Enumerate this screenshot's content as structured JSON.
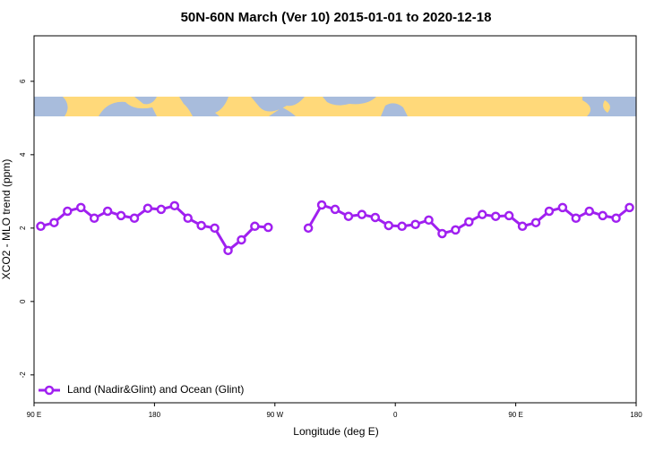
{
  "chart_data": {
    "type": "line",
    "title": "50N-60N March (Ver 10)   2015-01-01 to 2020-12-18",
    "x_label": "Longitude (deg E)",
    "y_label": "XCO2 - MLO trend (ppm)",
    "x": [
      95,
      105,
      115,
      125,
      135,
      145,
      155,
      165,
      175,
      185,
      195,
      205,
      215,
      225,
      235,
      245,
      255,
      265,
      275,
      285,
      295,
      305,
      315,
      325,
      335,
      345,
      355,
      365,
      375,
      385,
      395,
      405,
      415,
      425,
      435,
      445,
      455,
      465,
      475,
      485,
      495,
      505,
      515,
      525,
      535
    ],
    "series": [
      {
        "name": "Land (Nadir&Glint) and Ocean (Glint)",
        "color": "#a020f0",
        "values": [
          2.05,
          2.15,
          2.46,
          2.56,
          2.27,
          2.46,
          2.34,
          2.27,
          2.54,
          2.51,
          2.61,
          2.27,
          2.07,
          2.0,
          1.39,
          1.68,
          2.05,
          2.02,
          null,
          null,
          2.0,
          2.63,
          2.51,
          2.32,
          2.37,
          2.29,
          2.07,
          2.05,
          2.1,
          2.22,
          1.85,
          1.95,
          2.17,
          2.37,
          2.32,
          2.34,
          2.05,
          2.15,
          2.46,
          2.56,
          2.27,
          2.46,
          2.34,
          2.27,
          2.56
        ]
      }
    ],
    "xlim": [
      90,
      540
    ],
    "xticks": [
      {
        "value": 90,
        "label": "90 E"
      },
      {
        "value": 180,
        "label": "180"
      },
      {
        "value": 270,
        "label": "90 W"
      },
      {
        "value": 360,
        "label": "0"
      },
      {
        "value": 450,
        "label": "90 E"
      },
      {
        "value": 540,
        "label": "180"
      }
    ],
    "ylim": [
      -2.76,
      7.24
    ],
    "yticks": [
      -2,
      0,
      2,
      4,
      6
    ],
    "legend": "bottomleft"
  }
}
